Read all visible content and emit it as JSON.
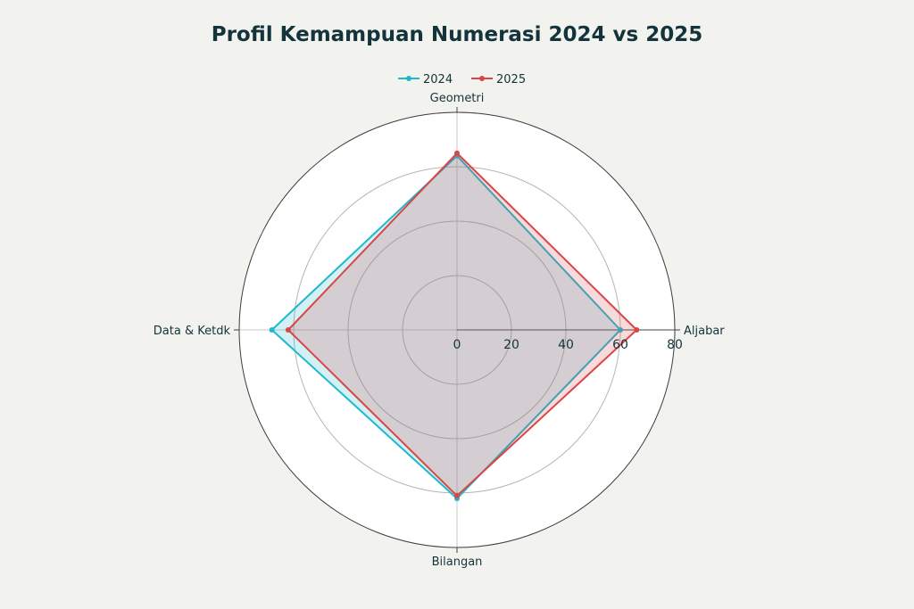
{
  "chart_data": {
    "type": "radar",
    "title": "Profil Kemampuan Numerasi 2024 vs 2025",
    "categories": [
      "Geometri",
      "Aljabar",
      "Bilangan",
      "Data & Ketdk"
    ],
    "radial_range": [
      0,
      80
    ],
    "radial_ticks": [
      "0",
      "20",
      "40",
      "60",
      "80"
    ],
    "grid": true,
    "legend_position": "top-center",
    "series": [
      {
        "name": "2024",
        "color": "#1fb8cd",
        "values": [
          64,
          60,
          62,
          68
        ]
      },
      {
        "name": "2025",
        "color": "#db4545",
        "values": [
          65,
          66,
          61,
          62
        ]
      }
    ]
  }
}
